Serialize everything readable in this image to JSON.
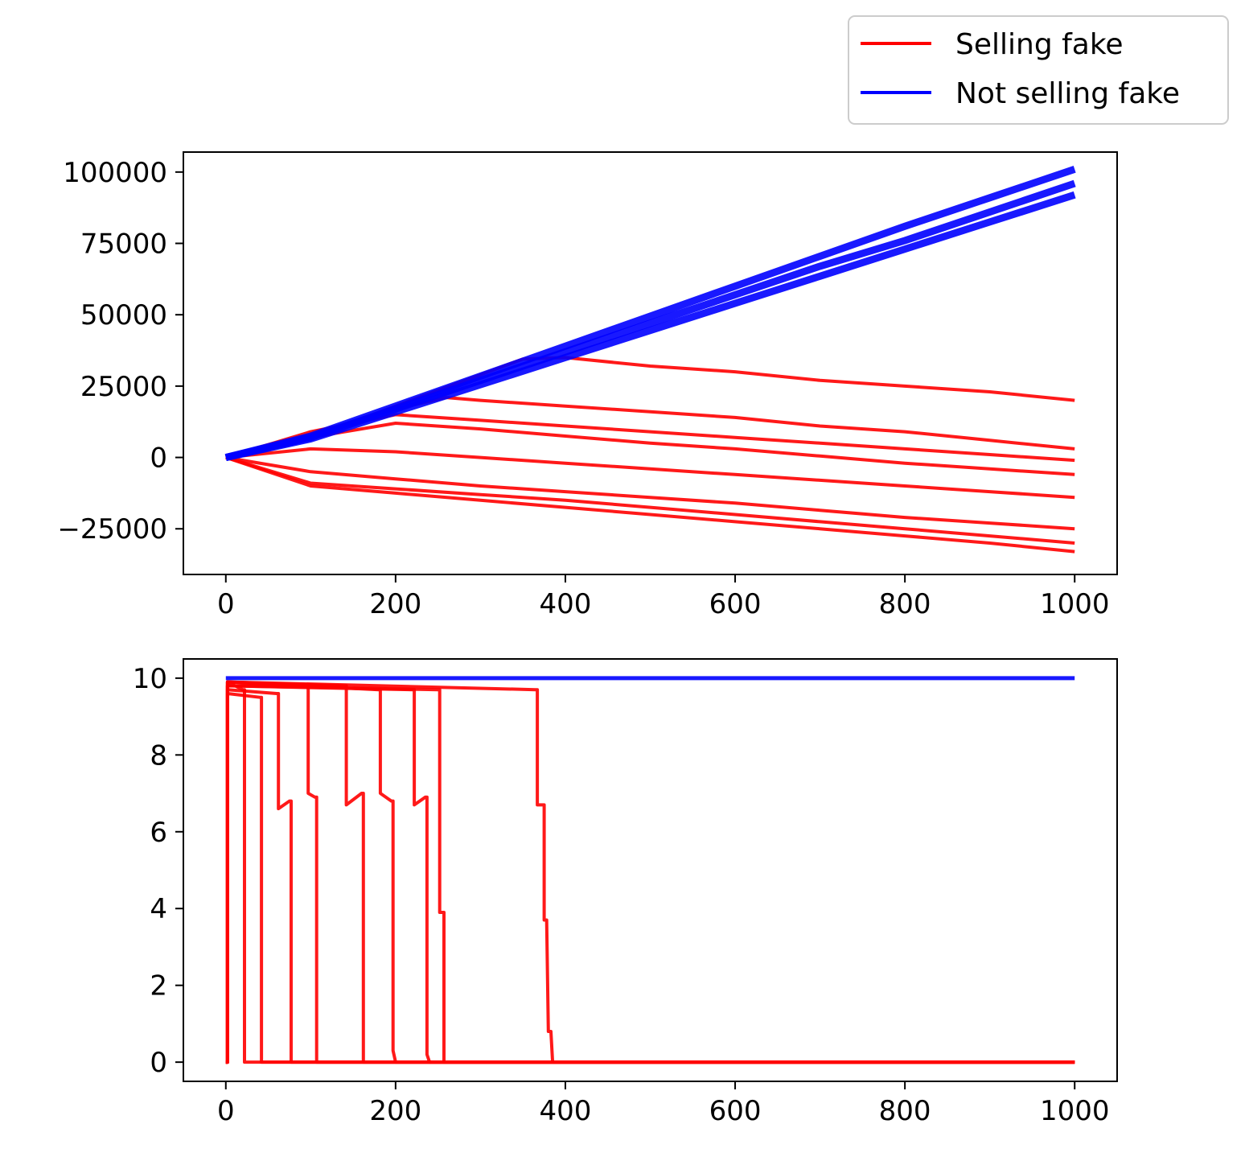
{
  "legend": {
    "placement": "top-right, outside axes",
    "entries": [
      {
        "label": "Selling fake",
        "color": "#ff0000"
      },
      {
        "label": "Not selling fake",
        "color": "#0000ff"
      }
    ]
  },
  "chart_data": [
    {
      "type": "line",
      "title": "",
      "xlabel": "",
      "ylabel": "",
      "xlim": [
        -50,
        1050
      ],
      "ylim": [
        -41000,
        107000
      ],
      "xticks": [
        0,
        200,
        400,
        600,
        800,
        1000
      ],
      "xtick_labels": [
        "0",
        "200",
        "400",
        "600",
        "800",
        "1000"
      ],
      "yticks": [
        -25000,
        0,
        25000,
        50000,
        75000,
        100000
      ],
      "ytick_labels": [
        "−25000",
        "0",
        "25000",
        "50000",
        "75000",
        "100000"
      ],
      "grid": false,
      "series": [
        {
          "color": "#0000ff",
          "description_group": "Not selling fake",
          "x": [
            0,
            100,
            200,
            300,
            400,
            500,
            600,
            700,
            800,
            900,
            1000
          ],
          "y": [
            0,
            7000,
            17000,
            27000,
            37000,
            47000,
            57000,
            67000,
            76000,
            86000,
            96000
          ]
        },
        {
          "color": "#0000ff",
          "x": [
            0,
            100,
            200,
            300,
            400,
            500,
            600,
            700,
            800,
            900,
            1000
          ],
          "y": [
            0,
            7500,
            18000,
            28500,
            39000,
            49500,
            60000,
            70500,
            81000,
            91000,
            101000
          ]
        },
        {
          "color": "#0000ff",
          "x": [
            0,
            100,
            200,
            300,
            400,
            500,
            600,
            700,
            800,
            900,
            1000
          ],
          "y": [
            0,
            6500,
            16000,
            25500,
            35000,
            44500,
            54000,
            63500,
            73000,
            82500,
            92000
          ]
        },
        {
          "color": "#ff0000",
          "x": [
            0,
            100,
            200,
            300,
            350,
            400,
            500,
            600,
            700,
            800,
            900,
            1000
          ],
          "y": [
            0,
            7000,
            18000,
            29000,
            34500,
            35000,
            32000,
            30000,
            27000,
            25000,
            23000,
            20000
          ]
        },
        {
          "color": "#ff0000",
          "x": [
            0,
            100,
            200,
            260,
            300,
            400,
            500,
            600,
            700,
            800,
            900,
            1000
          ],
          "y": [
            0,
            8000,
            17000,
            21000,
            20000,
            18000,
            16000,
            14000,
            11000,
            9000,
            6000,
            3000
          ]
        },
        {
          "color": "#ff0000",
          "x": [
            0,
            100,
            200,
            300,
            400,
            500,
            600,
            700,
            800,
            900,
            1000
          ],
          "y": [
            0,
            9000,
            15000,
            13000,
            11000,
            9000,
            7000,
            5000,
            3000,
            1000,
            -1000
          ]
        },
        {
          "color": "#ff0000",
          "x": [
            0,
            100,
            200,
            300,
            400,
            500,
            600,
            700,
            800,
            900,
            1000
          ],
          "y": [
            0,
            7000,
            12000,
            10000,
            7500,
            5000,
            3000,
            500,
            -2000,
            -4000,
            -6000
          ]
        },
        {
          "color": "#ff0000",
          "x": [
            0,
            100,
            200,
            300,
            400,
            500,
            600,
            700,
            800,
            900,
            1000
          ],
          "y": [
            0,
            3000,
            2000,
            0,
            -2000,
            -4000,
            -6000,
            -8000,
            -10000,
            -12000,
            -14000
          ]
        },
        {
          "color": "#ff0000",
          "x": [
            0,
            100,
            200,
            300,
            400,
            500,
            600,
            700,
            800,
            900,
            1000
          ],
          "y": [
            0,
            -5000,
            -7500,
            -10000,
            -12000,
            -14000,
            -16000,
            -18500,
            -21000,
            -23000,
            -25000
          ]
        },
        {
          "color": "#ff0000",
          "x": [
            0,
            100,
            200,
            300,
            400,
            500,
            600,
            700,
            800,
            900,
            1000
          ],
          "y": [
            0,
            -9000,
            -11000,
            -13000,
            -15000,
            -17500,
            -20000,
            -22500,
            -25000,
            -27500,
            -30000
          ]
        },
        {
          "color": "#ff0000",
          "x": [
            0,
            100,
            200,
            300,
            400,
            500,
            600,
            700,
            800,
            900,
            1000
          ],
          "y": [
            0,
            -10000,
            -12500,
            -15000,
            -17500,
            -20000,
            -22500,
            -25000,
            -27500,
            -30000,
            -33000
          ]
        }
      ]
    },
    {
      "type": "line",
      "title": "",
      "xlabel": "",
      "ylabel": "",
      "xlim": [
        -50,
        1050
      ],
      "ylim": [
        -0.5,
        10.5
      ],
      "xticks": [
        0,
        200,
        400,
        600,
        800,
        1000
      ],
      "xtick_labels": [
        "0",
        "200",
        "400",
        "600",
        "800",
        "1000"
      ],
      "yticks": [
        0,
        2,
        4,
        6,
        8,
        10
      ],
      "ytick_labels": [
        "0",
        "2",
        "4",
        "6",
        "8",
        "10"
      ],
      "grid": false,
      "series": [
        {
          "color": "#0000ff",
          "description_group": "Not selling fake",
          "x": [
            0,
            1000
          ],
          "y": [
            10,
            10
          ]
        },
        {
          "color": "#ff0000",
          "x": [
            0,
            2,
            2,
            365,
            367,
            367,
            373,
            375,
            375,
            378,
            380,
            380,
            383,
            385,
            1000
          ],
          "y": [
            0,
            0,
            9.9,
            9.7,
            9.7,
            6.7,
            6.7,
            6.7,
            3.7,
            3.7,
            0.8,
            0.8,
            0.8,
            0,
            0
          ]
        },
        {
          "color": "#ff0000",
          "x": [
            0,
            2,
            2,
            220,
            222,
            222,
            235,
            237,
            237,
            240,
            1000
          ],
          "y": [
            0,
            0,
            9.8,
            9.7,
            9.7,
            6.7,
            6.9,
            6.9,
            0.2,
            0,
            0
          ]
        },
        {
          "color": "#ff0000",
          "x": [
            0,
            2,
            2,
            180,
            182,
            182,
            195,
            197,
            197,
            200,
            1000
          ],
          "y": [
            0,
            0,
            9.9,
            9.7,
            9.7,
            7.0,
            6.8,
            6.8,
            0.3,
            0,
            0
          ]
        },
        {
          "color": "#ff0000",
          "x": [
            0,
            2,
            2,
            140,
            142,
            142,
            160,
            162,
            162,
            1000
          ],
          "y": [
            0,
            0,
            9.9,
            9.8,
            9.8,
            6.7,
            7.0,
            7.0,
            0,
            0
          ]
        },
        {
          "color": "#ff0000",
          "x": [
            0,
            2,
            2,
            95,
            97,
            97,
            105,
            107,
            107,
            1000
          ],
          "y": [
            0,
            0,
            9.8,
            9.8,
            9.8,
            7.0,
            6.9,
            6.9,
            0,
            0
          ]
        },
        {
          "color": "#ff0000",
          "x": [
            0,
            2,
            2,
            60,
            62,
            62,
            75,
            77,
            77,
            1000
          ],
          "y": [
            0,
            0,
            9.7,
            9.6,
            9.6,
            6.6,
            6.8,
            6.8,
            0,
            0
          ]
        },
        {
          "color": "#ff0000",
          "x": [
            0,
            2,
            2,
            40,
            42,
            42,
            1000
          ],
          "y": [
            0,
            0,
            9.6,
            9.5,
            9.5,
            0,
            0
          ]
        },
        {
          "color": "#ff0000",
          "x": [
            0,
            2,
            2,
            20,
            22,
            22,
            1000
          ],
          "y": [
            0,
            0,
            9.9,
            9.7,
            9.7,
            0,
            0
          ]
        },
        {
          "color": "#ff0000",
          "x": [
            0,
            2,
            2,
            250,
            252,
            252,
            255,
            257,
            257,
            1000
          ],
          "y": [
            0,
            0,
            9.8,
            9.7,
            9.7,
            3.9,
            3.9,
            3.9,
            0,
            0
          ]
        }
      ]
    }
  ]
}
